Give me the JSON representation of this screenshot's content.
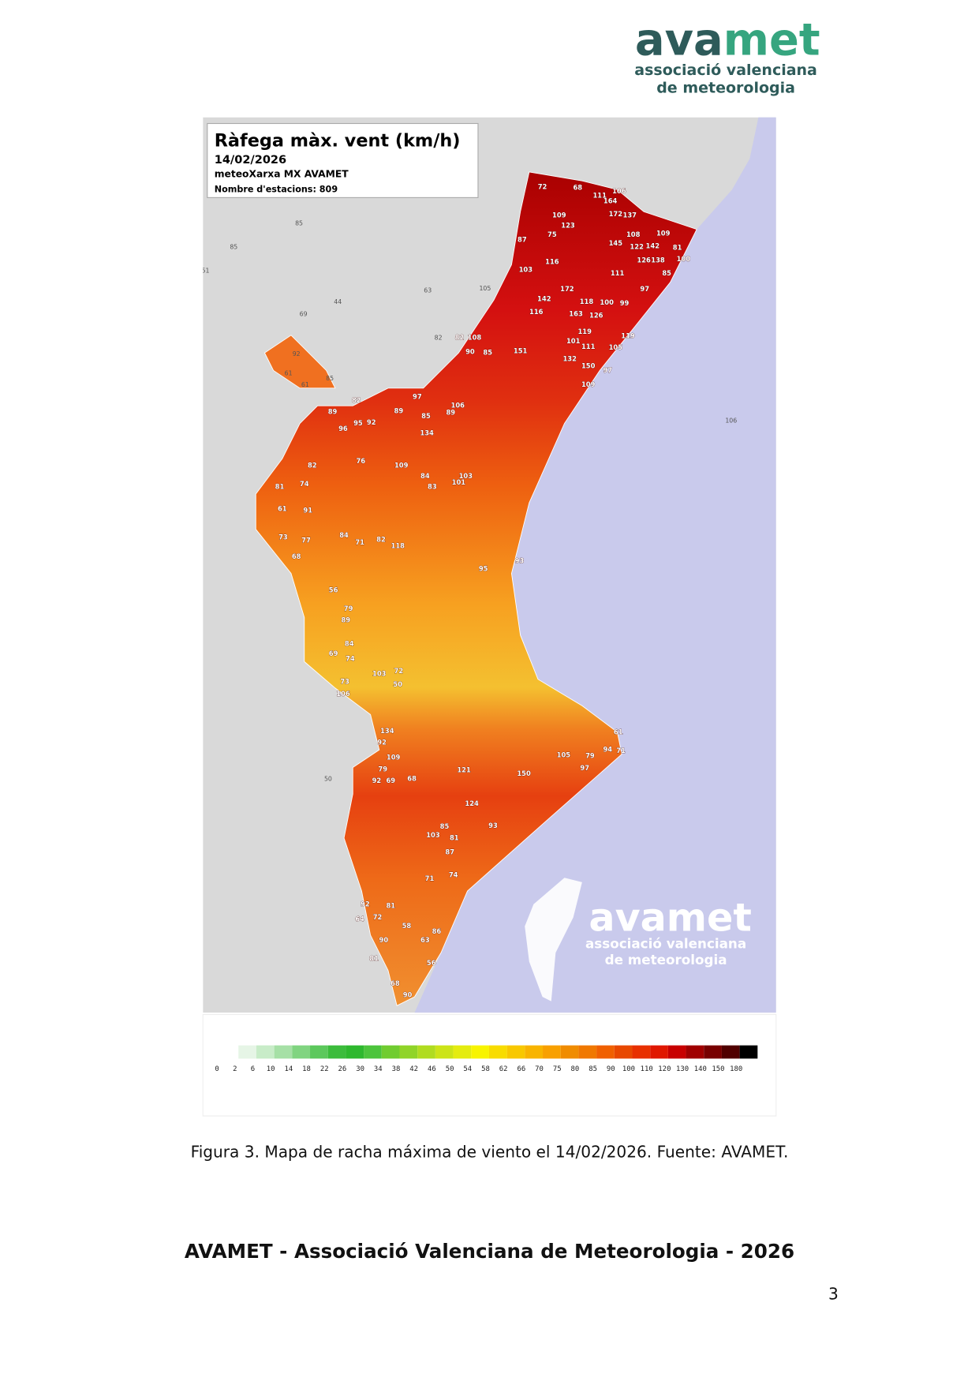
{
  "header": {
    "logo_parts": [
      "ava",
      "met"
    ],
    "logo_line1": "associació valenciana",
    "logo_line2": "de meteorologia"
  },
  "map": {
    "title": "Ràfega màx. vent (km/h)",
    "date": "14/02/2026",
    "source": "meteoXarxa MX AVAMET",
    "stations_count": "Nombre d'estacions: 809",
    "watermark": {
      "logo": "avamet",
      "line1": "associació valenciana",
      "line2": "de meteorologia"
    },
    "station_values": [
      72,
      68,
      111,
      106,
      164,
      172,
      137,
      109,
      123,
      75,
      87,
      145,
      108,
      109,
      122,
      142,
      81,
      100,
      126,
      138,
      116,
      103,
      111,
      85,
      97,
      172,
      142,
      118,
      100,
      99,
      163,
      126,
      116,
      119,
      101,
      111,
      105,
      119,
      108,
      82,
      90,
      85,
      151,
      132,
      150,
      97,
      109,
      106,
      89,
      97,
      89,
      85,
      134,
      96,
      89,
      95,
      92,
      82,
      109,
      84,
      83,
      103,
      101,
      82,
      81,
      74,
      76,
      118,
      82,
      84,
      71,
      73,
      77,
      68,
      61,
      91,
      93,
      95,
      56,
      79,
      89,
      84,
      69,
      74,
      73,
      106,
      103,
      50,
      72,
      134,
      92,
      109,
      79,
      92,
      69,
      68,
      121,
      124,
      150,
      105,
      97,
      79,
      94,
      71,
      61,
      93,
      85,
      103,
      81,
      87,
      71,
      74,
      92,
      81,
      64,
      72,
      58,
      86,
      90,
      81,
      63,
      56,
      68,
      90
    ],
    "outside_values": [
      85,
      85,
      51,
      63,
      105,
      44,
      69,
      82,
      106,
      50,
      92,
      61,
      61,
      85
    ]
  },
  "legend": {
    "labels": [
      0,
      2,
      6,
      10,
      14,
      18,
      22,
      26,
      30,
      34,
      38,
      42,
      46,
      50,
      54,
      58,
      62,
      66,
      70,
      75,
      80,
      85,
      90,
      100,
      110,
      120,
      130,
      140,
      150,
      180
    ],
    "colors": [
      "#ffffff",
      "#e6f5e6",
      "#c8ecc8",
      "#a6e0a6",
      "#80d480",
      "#5cc85c",
      "#3cbc3c",
      "#2eb82e",
      "#4cc43c",
      "#70cc30",
      "#90d428",
      "#b0dc20",
      "#cce418",
      "#e4ec10",
      "#f8f400",
      "#f8dc00",
      "#f8c800",
      "#f8b400",
      "#f8a000",
      "#f08c00",
      "#f07800",
      "#f06000",
      "#e84800",
      "#e83000",
      "#e01800",
      "#c80000",
      "#a00000",
      "#780000",
      "#500000",
      "#000000"
    ]
  },
  "caption": "Figura 3. Mapa de racha máxima de viento el 14/02/2026. Fuente: AVAMET.",
  "footer": "AVAMET - Associació Valenciana de Meteorologia - 2026",
  "page_number": "3"
}
